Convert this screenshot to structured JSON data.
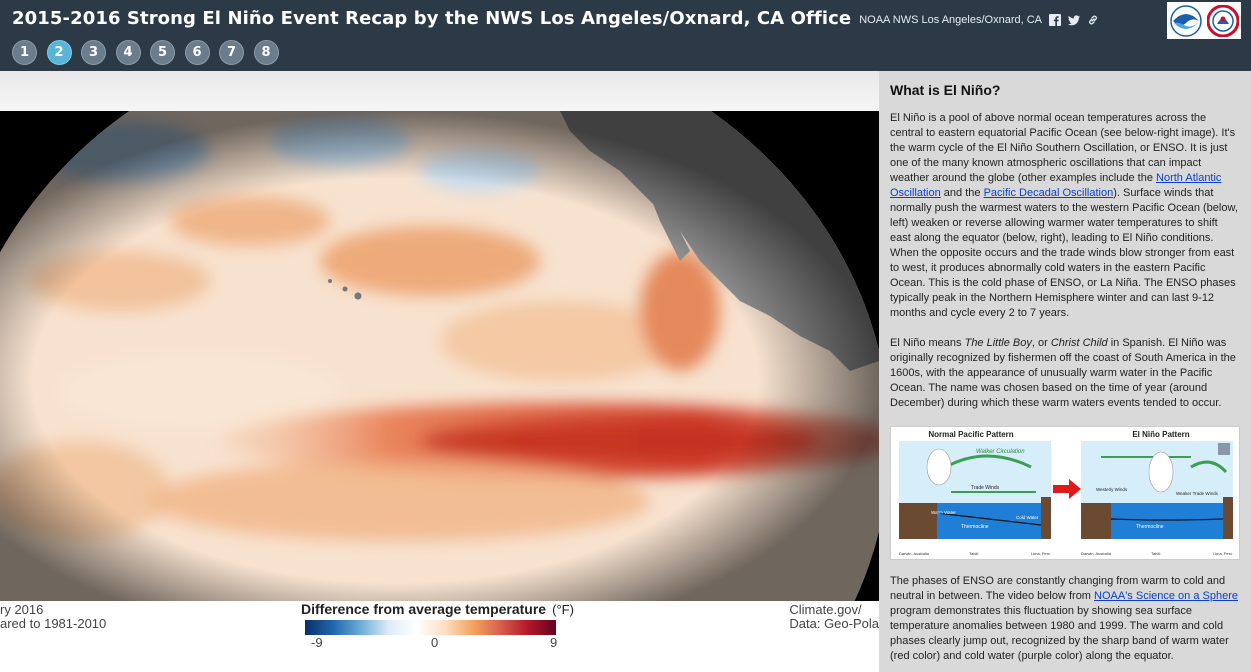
{
  "header": {
    "title": "2015-2016 Strong El Niño Event Recap by the NWS Los Angeles/Oxnard, CA Office",
    "office": "NOAA NWS Los Angeles/Oxnard, CA",
    "nav": [
      "1",
      "2",
      "3",
      "4",
      "5",
      "6",
      "7",
      "8"
    ],
    "active_index": 1,
    "share_icons": [
      "facebook-icon",
      "twitter-icon",
      "link-icon"
    ]
  },
  "map": {
    "caption_left_1": "ry 2016",
    "caption_left_2": "ared to 1981-2010",
    "caption_right_1": "Climate.gov/",
    "caption_right_2": "Data: Geo-Pola",
    "legend_title": "Difference from average temperature",
    "legend_unit": "(°F)",
    "ticks": [
      "-9",
      "0",
      "9"
    ],
    "colors": {
      "cold": "#08306b",
      "neutral": "#ffffff",
      "warm": "#b2182b"
    }
  },
  "sidebar": {
    "title": "What is El Niño?",
    "p1_a": "El Niño is a pool of above normal ocean temperatures across the central to eastern equatorial Pacific Ocean (see below-right image). It's the warm cycle of the El Niño Southern Oscillation, or ENSO. It is just one of the many known atmospheric oscillations that can impact weather around the globe (other examples include the ",
    "link_nao": "North Atlantic Oscillation",
    "p1_b": " and the ",
    "link_pdo": "Pacific Decadal Oscillation",
    "p1_c": "). Surface winds that normally push the warmest waters to the western Pacific Ocean (below, left) weaken or reverse allowing warmer water temperatures to shift east along the equator (below, right), leading to El Niño conditions. When the opposite occurs and the trade winds blow stronger from east to west, it produces abnormally cold waters in the eastern Pacific Ocean. This is the cold phase of ENSO, or La Niña. The ENSO phases typically peak in the Northern Hemisphere winter and can last 9-12 months and cycle every 2 to 7 years.",
    "p2_a": "El Niño means ",
    "p2_em1": "The Little Boy",
    "p2_b": ", or ",
    "p2_em2": "Christ Child",
    "p2_c": " in Spanish. El Niño was originally recognized by fishermen off the coast of South America in the 1600s, with the appearance of unusually warm water in the Pacific Ocean. The name was chosen based on the time of year (around December) during which these warm waters events tended to occur.",
    "diagram": {
      "left_title": "Normal Pacific Pattern",
      "right_title": "El Niño Pattern",
      "left_circulation": "Walker Circulation",
      "left_winds": "Trade Winds",
      "right_winds_1": "Westerly Winds",
      "right_winds_2": "Weaker Trade Winds",
      "thermocline": "Thermocline",
      "warm_water": "Warm Water",
      "cold_water": "Cold Water",
      "left_place_1": "Darwin, Australia",
      "left_place_2": "Lima, Peru",
      "left_place_3": "Tahiti",
      "right_place_1": "Darwin, Australia",
      "right_place_2": "Lima, Peru",
      "right_place_3": "Tahiti"
    },
    "p3_a": "The phases of ENSO are constantly changing from warm to cold and neutral in between. The video below from ",
    "link_sos": "NOAA's Science on a Sphere",
    "p3_b": " program demonstrates this fluctuation by showing sea surface temperature anomalies between 1980 and 1999. The warm and cold phases clearly jump out, recognized by the sharp band of warm water (red color) and cold water (purple color) along the equator."
  }
}
